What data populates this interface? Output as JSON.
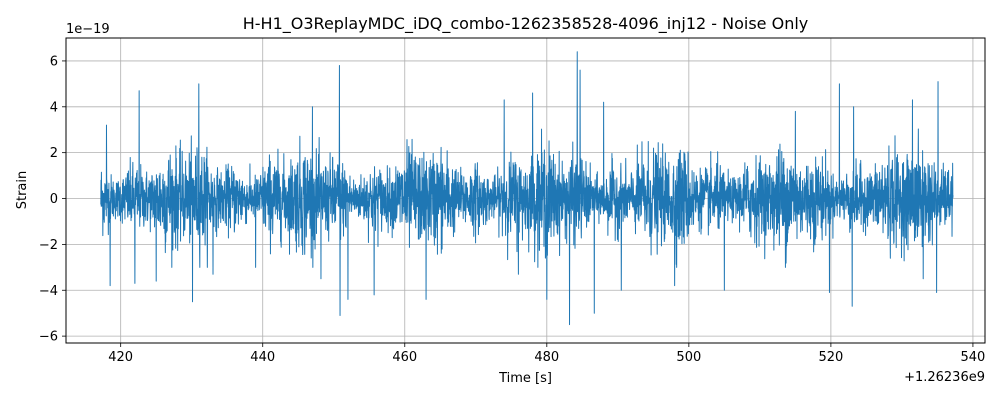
{
  "chart_data": {
    "type": "line",
    "title": "H-H1_O3ReplayMDC_iDQ_combo-1262358528-4096_inj12 - Noise Only",
    "xlabel": "Time [s]",
    "ylabel": "Strain",
    "x_offset_label": "+1.26236e9",
    "y_scale_label": "1e−19",
    "x_ticks": [
      420,
      440,
      460,
      480,
      500,
      520,
      540
    ],
    "x_tick_labels": [
      "420",
      "440",
      "460",
      "480",
      "500",
      "520",
      "540"
    ],
    "y_ticks": [
      -6,
      -4,
      -2,
      0,
      2,
      4,
      6
    ],
    "y_tick_labels": [
      "−6",
      "−4",
      "−2",
      "0",
      "2",
      "4",
      "6"
    ],
    "xlim": [
      412.3,
      541.7
    ],
    "ylim": [
      -6.3,
      7.0
    ],
    "grid": true,
    "series": [
      {
        "color": "#1f77b4",
        "x_range": [
          417.2,
          537.2
        ],
        "spikes": [
          {
            "x": 418.0,
            "y": 3.2
          },
          {
            "x": 418.5,
            "y": -3.8
          },
          {
            "x": 422.6,
            "y": 4.7
          },
          {
            "x": 422.0,
            "y": -3.7
          },
          {
            "x": 425.0,
            "y": -3.6
          },
          {
            "x": 430.1,
            "y": -4.5
          },
          {
            "x": 431.0,
            "y": 5.0
          },
          {
            "x": 433.0,
            "y": -3.3
          },
          {
            "x": 439.0,
            "y": -3.0
          },
          {
            "x": 447.0,
            "y": 4.0
          },
          {
            "x": 448.2,
            "y": -3.5
          },
          {
            "x": 450.8,
            "y": 5.8
          },
          {
            "x": 450.9,
            "y": -5.1
          },
          {
            "x": 452.0,
            "y": -4.4
          },
          {
            "x": 455.7,
            "y": -4.2
          },
          {
            "x": 463.0,
            "y": -4.4
          },
          {
            "x": 474.0,
            "y": 4.3
          },
          {
            "x": 476.0,
            "y": -3.3
          },
          {
            "x": 478.0,
            "y": 4.6
          },
          {
            "x": 480.0,
            "y": -4.4
          },
          {
            "x": 483.2,
            "y": -5.5
          },
          {
            "x": 484.3,
            "y": 6.4
          },
          {
            "x": 484.7,
            "y": 5.6
          },
          {
            "x": 486.7,
            "y": -5.0
          },
          {
            "x": 488.0,
            "y": 4.2
          },
          {
            "x": 490.5,
            "y": -4.0
          },
          {
            "x": 498.0,
            "y": -3.8
          },
          {
            "x": 505.0,
            "y": -4.0
          },
          {
            "x": 515.0,
            "y": 3.8
          },
          {
            "x": 519.8,
            "y": -4.1
          },
          {
            "x": 521.2,
            "y": 5.0
          },
          {
            "x": 523.0,
            "y": -4.7
          },
          {
            "x": 523.2,
            "y": 4.0
          },
          {
            "x": 531.5,
            "y": 4.3
          },
          {
            "x": 533.0,
            "y": -3.5
          },
          {
            "x": 534.9,
            "y": -4.1
          },
          {
            "x": 535.1,
            "y": 5.1
          }
        ]
      }
    ]
  }
}
